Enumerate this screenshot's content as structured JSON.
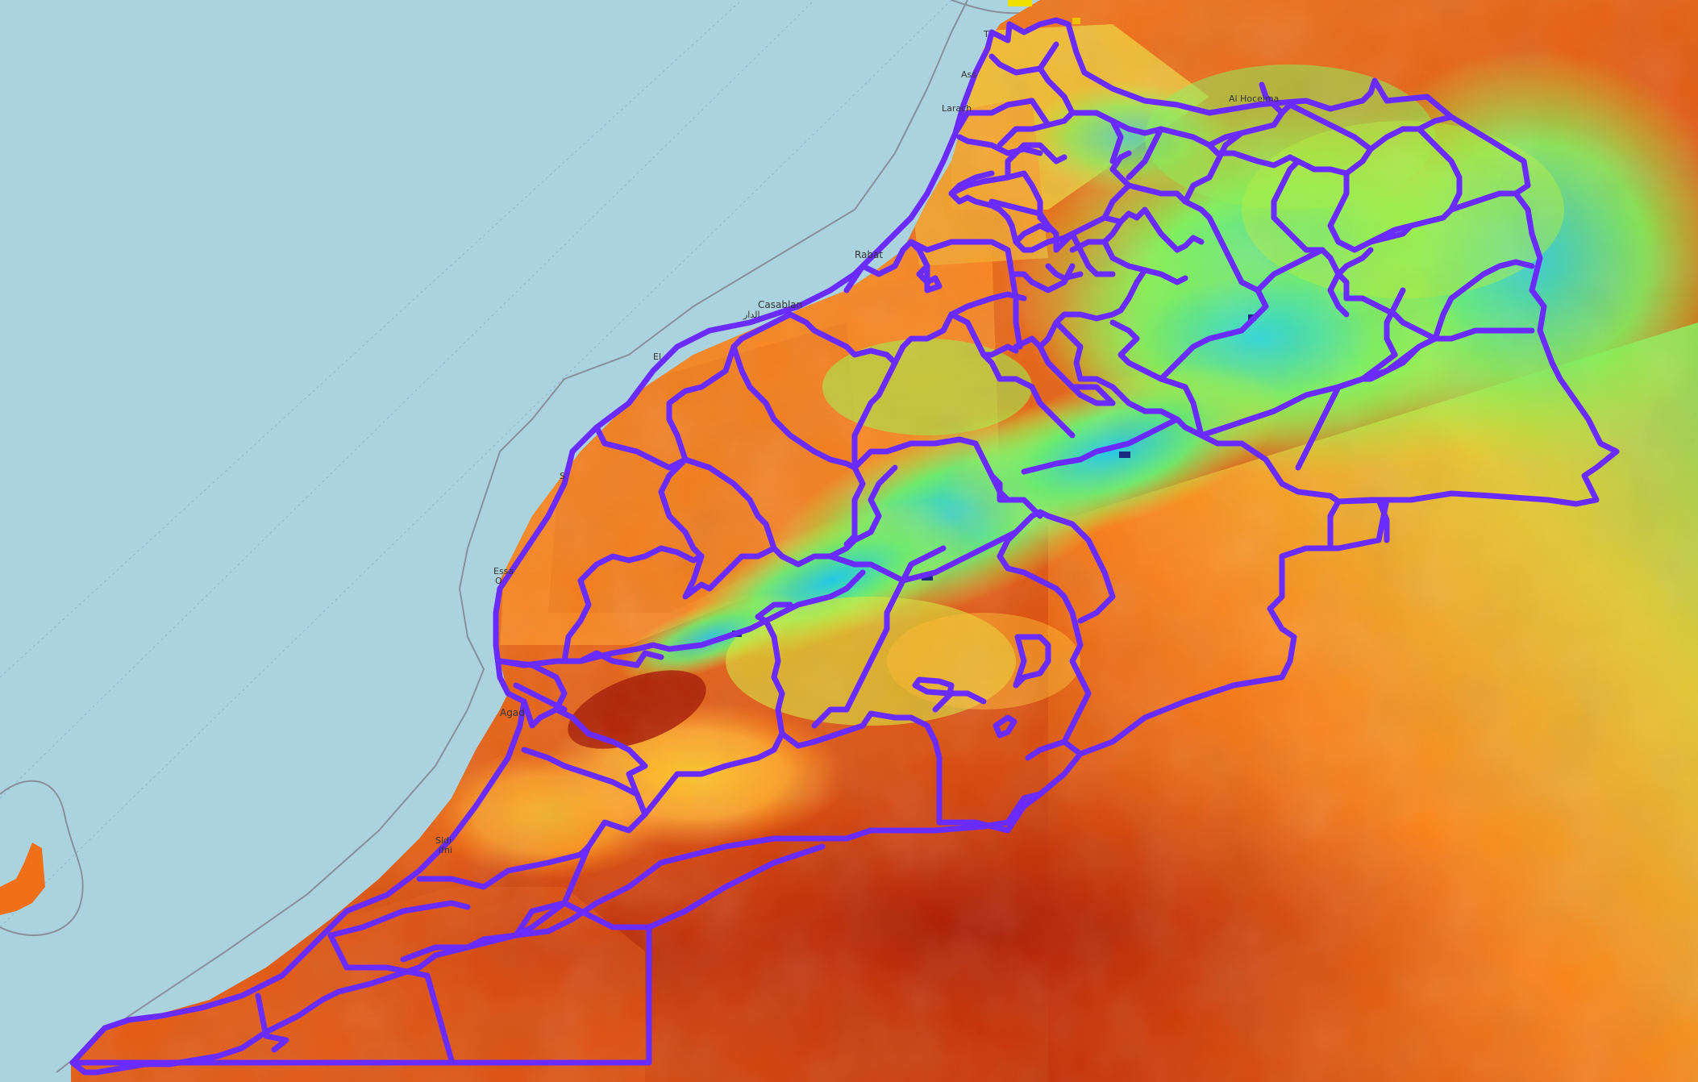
{
  "map": {
    "colors": {
      "ocean": "#aad3df",
      "coastline": "#8a8f9e",
      "boundary": "#6a2bff",
      "heat_low": "#2ad8e0",
      "heat_mid": "#a8f03a",
      "heat_high": "#ff9a2a",
      "heat_max": "#b81c00"
    },
    "layers": [
      "basemap",
      "raster-overlay",
      "province-boundaries",
      "place-labels"
    ],
    "place_labels": {
      "tanger": "T",
      "assilah": "Ass",
      "larache": "Larach",
      "alhoceima": "Al Hoceima",
      "rabat": "Rabat",
      "casablanca": "Casablan",
      "casablanca_ar": "الدار",
      "eljadida": "El",
      "safi": "S",
      "essaouira": "Essa",
      "essaouira2": "O",
      "agadir": "Agad",
      "sidiifni": "Sidi",
      "sidiifni2": "ifni"
    }
  }
}
